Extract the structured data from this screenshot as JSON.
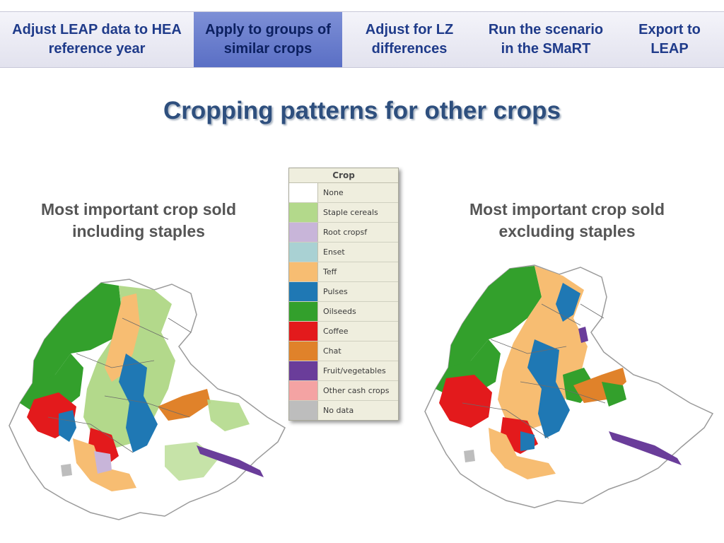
{
  "nav": {
    "items": [
      {
        "label": "Adjust LEAP data to HEA reference year",
        "active": false
      },
      {
        "label": "Apply to groups of similar crops",
        "active": true
      },
      {
        "label": "Adjust for LZ differences",
        "active": false
      },
      {
        "label": "Run the scenario in the SMaRT",
        "active": false
      },
      {
        "label": "Export to LEAP",
        "active": false
      }
    ]
  },
  "title": "Cropping patterns for other crops",
  "left_panel": {
    "heading": "Most important crop sold including staples"
  },
  "right_panel": {
    "heading": "Most important crop sold excluding staples"
  },
  "legend": {
    "header": "Crop",
    "items": [
      {
        "label": "None",
        "color": "#ffffff"
      },
      {
        "label": "Staple cereals",
        "color": "#b3d98b"
      },
      {
        "label": "Root cropsf",
        "color": "#c8b5d9"
      },
      {
        "label": "Enset",
        "color": "#a9d1d3"
      },
      {
        "label": "Teff",
        "color": "#f7bd72"
      },
      {
        "label": "Pulses",
        "color": "#1f78b4"
      },
      {
        "label": "Oilseeds",
        "color": "#33a02c"
      },
      {
        "label": "Coffee",
        "color": "#e31a1c"
      },
      {
        "label": "Chat",
        "color": "#e0822a"
      },
      {
        "label": "Fruit/vegetables",
        "color": "#6a3d9a"
      },
      {
        "label": "Other cash crops",
        "color": "#f4a3a3"
      },
      {
        "label": "No data",
        "color": "#bdbdbd"
      }
    ]
  }
}
